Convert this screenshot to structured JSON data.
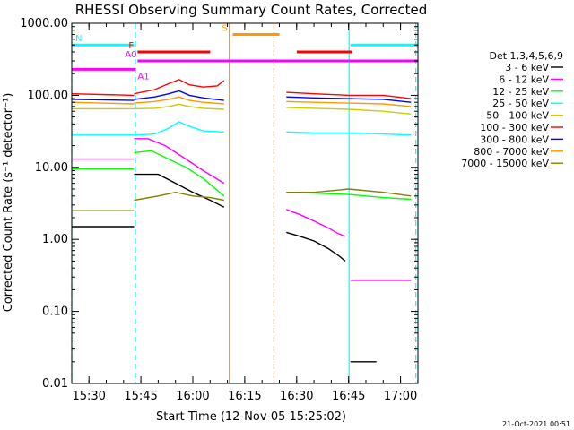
{
  "chart_data": {
    "type": "line",
    "title": "RHESSI Observing Summary Count Rates, Corrected",
    "xlabel": "Start Time (12-Nov-05 15:25:02)",
    "ylabel": "Corrected Count Rate (s⁻¹ detector⁻¹)",
    "y_scale": "log",
    "ylim": [
      0.01,
      1000
    ],
    "xlim_minutes_after_start": [
      0,
      100
    ],
    "x_ticks": [
      {
        "label": "15:30",
        "minute": 4.97
      },
      {
        "label": "15:45",
        "minute": 19.97
      },
      {
        "label": "16:00",
        "minute": 34.97
      },
      {
        "label": "16:15",
        "minute": 49.97
      },
      {
        "label": "16:30",
        "minute": 64.97
      },
      {
        "label": "16:45",
        "minute": 79.97
      },
      {
        "label": "17:00",
        "minute": 94.97
      }
    ],
    "y_ticks": [
      {
        "label": "0.01",
        "value": 0.01
      },
      {
        "label": "0.10",
        "value": 0.1
      },
      {
        "label": "1.00",
        "value": 1
      },
      {
        "label": "10.00",
        "value": 10
      },
      {
        "label": "100.00",
        "value": 100
      },
      {
        "label": "1000.00",
        "value": 1000
      }
    ],
    "legend_header": "Det 1,3,4,5,6,9",
    "legend_position": "right",
    "series": [
      {
        "name": "3 - 6 keV",
        "color": "#000000",
        "segments": [
          [
            [
              0,
              1.5
            ],
            [
              18,
              1.5
            ]
          ],
          [
            [
              18,
              8
            ],
            [
              25,
              8
            ],
            [
              30,
              6
            ],
            [
              35,
              4.5
            ],
            [
              40,
              3.5
            ],
            [
              44,
              2.8
            ]
          ],
          [
            [
              62,
              1.25
            ],
            [
              66,
              1.1
            ],
            [
              70,
              0.95
            ],
            [
              74,
              0.75
            ],
            [
              77,
              0.6
            ],
            [
              79,
              0.5
            ]
          ],
          [
            [
              80.5,
              0.02
            ],
            [
              88,
              0.02
            ]
          ]
        ]
      },
      {
        "name": "6 - 12 keV",
        "color": "#ff00ff",
        "segments": [
          [
            [
              0,
              13
            ],
            [
              18,
              13
            ]
          ],
          [
            [
              18,
              25
            ],
            [
              22,
              25
            ],
            [
              27,
              20
            ],
            [
              32,
              14
            ],
            [
              38,
              9
            ],
            [
              44,
              6
            ]
          ],
          [
            [
              62,
              2.6
            ],
            [
              66,
              2.2
            ],
            [
              70,
              1.8
            ],
            [
              74,
              1.45
            ],
            [
              77,
              1.2
            ],
            [
              79,
              1.1
            ]
          ],
          [
            [
              80.5,
              0.27
            ],
            [
              98,
              0.27
            ]
          ]
        ]
      },
      {
        "name": "12 - 25 keV",
        "color": "#00ff00",
        "segments": [
          [
            [
              0,
              9.5
            ],
            [
              18,
              9.5
            ]
          ],
          [
            [
              18,
              16
            ],
            [
              23,
              17
            ],
            [
              28,
              13
            ],
            [
              33,
              10
            ],
            [
              38,
              7
            ],
            [
              44,
              4
            ]
          ],
          [
            [
              62,
              4.5
            ],
            [
              70,
              4.4
            ],
            [
              80,
              4.2
            ],
            [
              90,
              3.8
            ],
            [
              98,
              3.6
            ]
          ]
        ]
      },
      {
        "name": "25 - 50 keV",
        "color": "#00ffff",
        "segments": [
          [
            [
              0,
              28
            ],
            [
              18,
              28
            ]
          ],
          [
            [
              18,
              28
            ],
            [
              24,
              29
            ],
            [
              28,
              35
            ],
            [
              31,
              43
            ],
            [
              34,
              37
            ],
            [
              38,
              32
            ],
            [
              44,
              31
            ]
          ],
          [
            [
              62,
              31
            ],
            [
              70,
              30
            ],
            [
              80,
              30
            ],
            [
              90,
              29
            ],
            [
              98,
              28
            ]
          ]
        ]
      },
      {
        "name": "50 - 100 keV",
        "color": "#cccc00",
        "segments": [
          [
            [
              0,
              65
            ],
            [
              18,
              65
            ]
          ],
          [
            [
              18,
              65
            ],
            [
              24,
              66
            ],
            [
              28,
              70
            ],
            [
              31,
              75
            ],
            [
              34,
              70
            ],
            [
              38,
              66
            ],
            [
              44,
              64
            ]
          ],
          [
            [
              62,
              68
            ],
            [
              70,
              66
            ],
            [
              80,
              64
            ],
            [
              90,
              60
            ],
            [
              98,
              55
            ]
          ]
        ]
      },
      {
        "name": "100 - 300 keV",
        "color": "#ff0000",
        "segments": [
          [
            [
              0,
              105
            ],
            [
              18,
              100
            ]
          ],
          [
            [
              18,
              105
            ],
            [
              24,
              120
            ],
            [
              28,
              145
            ],
            [
              31,
              165
            ],
            [
              34,
              140
            ],
            [
              38,
              130
            ],
            [
              42,
              135
            ],
            [
              44,
              160
            ]
          ],
          [
            [
              62,
              110
            ],
            [
              70,
              105
            ],
            [
              80,
              100
            ],
            [
              90,
              100
            ],
            [
              98,
              90
            ]
          ]
        ]
      },
      {
        "name": "300 - 800 keV",
        "color": "#0000ff",
        "segments": [
          [
            [
              0,
              88
            ],
            [
              18,
              85
            ]
          ],
          [
            [
              18,
              88
            ],
            [
              24,
              95
            ],
            [
              28,
              105
            ],
            [
              31,
              115
            ],
            [
              34,
              100
            ],
            [
              38,
              92
            ],
            [
              44,
              85
            ]
          ],
          [
            [
              62,
              95
            ],
            [
              70,
              92
            ],
            [
              80,
              90
            ],
            [
              90,
              88
            ],
            [
              98,
              80
            ]
          ]
        ]
      },
      {
        "name": "800 - 7000 keV",
        "color": "#ff9900",
        "segments": [
          [
            [
              0,
              80
            ],
            [
              18,
              76
            ]
          ],
          [
            [
              18,
              78
            ],
            [
              24,
              82
            ],
            [
              28,
              88
            ],
            [
              31,
              95
            ],
            [
              34,
              85
            ],
            [
              38,
              80
            ],
            [
              44,
              76
            ]
          ],
          [
            [
              62,
              82
            ],
            [
              70,
              80
            ],
            [
              80,
              78
            ],
            [
              90,
              76
            ],
            [
              98,
              70
            ]
          ]
        ]
      },
      {
        "name": "7000 - 15000 keV",
        "color": "#808000",
        "segments": [
          [
            [
              0,
              2.5
            ],
            [
              18,
              2.5
            ]
          ],
          [
            [
              18,
              3.5
            ],
            [
              25,
              4
            ],
            [
              30,
              4.5
            ],
            [
              35,
              4
            ],
            [
              40,
              3.8
            ],
            [
              44,
              3.5
            ]
          ],
          [
            [
              62,
              4.5
            ],
            [
              70,
              4.5
            ],
            [
              80,
              5
            ],
            [
              90,
              4.5
            ],
            [
              98,
              4
            ]
          ]
        ]
      }
    ],
    "vertical_markers": [
      {
        "minute": 0,
        "color": "#00ffff",
        "style": "dashed"
      },
      {
        "minute": 18.4,
        "color": "#00ffff",
        "style": "dashed"
      },
      {
        "minute": 45.5,
        "color": "#ff9900",
        "style": "solid"
      },
      {
        "minute": 58.4,
        "color": "#ff9900",
        "style": "dashed"
      },
      {
        "minute": 80.1,
        "color": "#00ffff",
        "style": "solid"
      },
      {
        "minute": 99.4,
        "color": "#00ffff",
        "style": "dashed"
      }
    ],
    "state_bars": [
      {
        "label": "N",
        "color": "#00ffff",
        "value": 500,
        "intervals": [
          [
            0,
            18
          ],
          [
            80.5,
            100
          ]
        ]
      },
      {
        "label": "F",
        "color": "#ff0000",
        "value": 400,
        "intervals": [
          [
            19,
            40
          ],
          [
            65,
            81
          ]
        ]
      },
      {
        "label": "S",
        "color": "#ff9900",
        "value": 700,
        "intervals": [
          [
            46.5,
            60
          ]
        ]
      },
      {
        "label": "A0",
        "color": "#ff00ff",
        "value": 300,
        "intervals": [
          [
            19,
            100
          ]
        ]
      },
      {
        "label": "A1",
        "color": "#ff00ff",
        "value": 230,
        "intervals": [
          [
            0,
            18.5
          ]
        ]
      }
    ],
    "footnote": "21-Oct-2021 00:51"
  }
}
